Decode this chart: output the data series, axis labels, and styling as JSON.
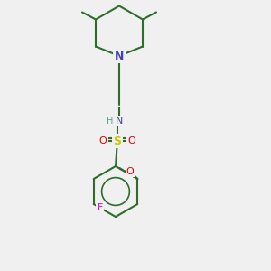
{
  "background_color": "#f0f0f0",
  "bond_color": "#2d6e2d",
  "atom_colors": {
    "N_amine": "#4040c0",
    "N_sulfonamide": "#4040c0",
    "O": "#e00000",
    "S": "#c8c800",
    "F": "#d000d0",
    "C": "#2d6e2d",
    "H": "#5a9e8a"
  },
  "figsize": [
    3.0,
    3.0
  ],
  "dpi": 100
}
